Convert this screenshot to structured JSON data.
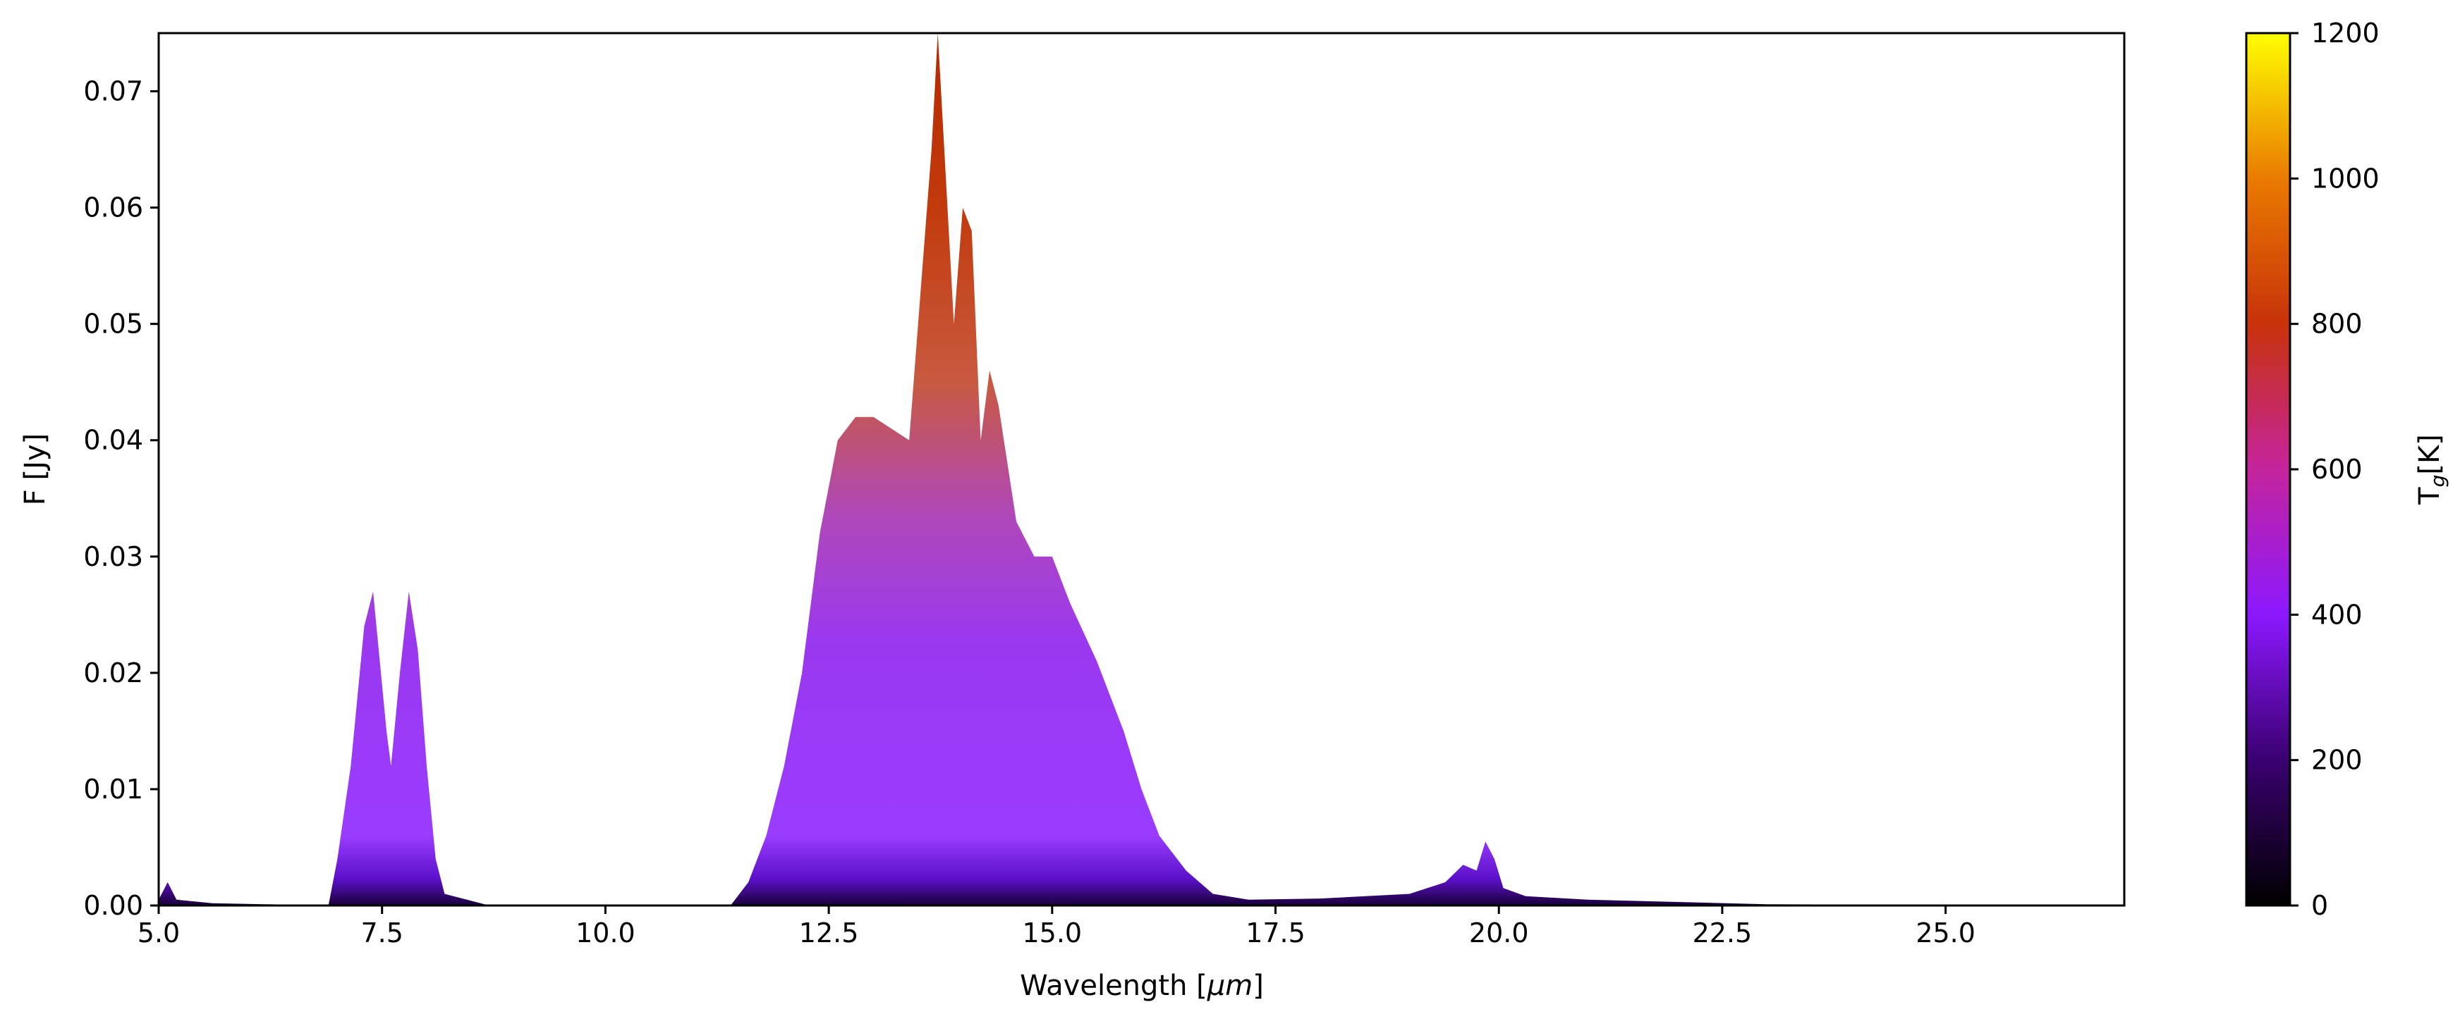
{
  "chart_data": {
    "type": "area",
    "xlabel_main": "Wavelength [",
    "xlabel_unit": "μm",
    "xlabel_end": "]",
    "ylabel": "F [Jy]",
    "xlim": [
      5.0,
      27.0
    ],
    "ylim": [
      0.0,
      0.075
    ],
    "xticks": [
      "5.0",
      "7.5",
      "10.0",
      "12.5",
      "15.0",
      "17.5",
      "20.0",
      "22.5",
      "25.0"
    ],
    "yticks": [
      "0.00",
      "0.01",
      "0.02",
      "0.03",
      "0.04",
      "0.05",
      "0.06",
      "0.07"
    ],
    "grid": false,
    "colorbar": {
      "label_main": "T",
      "label_sub": "g",
      "label_end": "[K]",
      "range": [
        0,
        1200
      ],
      "ticks": [
        "0",
        "200",
        "400",
        "600",
        "800",
        "1000",
        "1200"
      ],
      "colormap": "gnuplot",
      "colors": [
        "#000000",
        "#3a0070",
        "#8c18ff",
        "#c4249c",
        "#c8320a",
        "#ea7a00",
        "#ffff00"
      ]
    },
    "envelope": {
      "x": [
        5.0,
        5.1,
        5.2,
        5.6,
        6.9,
        7.0,
        7.15,
        7.3,
        7.4,
        7.55,
        7.6,
        7.7,
        7.8,
        7.9,
        8.0,
        8.1,
        8.2,
        8.7,
        11.4,
        11.6,
        11.8,
        12.0,
        12.2,
        12.4,
        12.6,
        12.8,
        13.0,
        13.2,
        13.4,
        13.55,
        13.65,
        13.72,
        13.8,
        13.9,
        14.0,
        14.1,
        14.2,
        14.3,
        14.4,
        14.6,
        14.8,
        15.0,
        15.2,
        15.5,
        15.8,
        16.0,
        16.2,
        16.5,
        16.8,
        17.2,
        18.0,
        19.0,
        19.4,
        19.6,
        19.75,
        19.85,
        19.95,
        20.05,
        20.3,
        21.0,
        22.0,
        23.0,
        27.0
      ],
      "y": [
        0.0005,
        0.002,
        0.0005,
        0.0002,
        0.0,
        0.004,
        0.012,
        0.024,
        0.027,
        0.015,
        0.012,
        0.02,
        0.027,
        0.022,
        0.012,
        0.004,
        0.001,
        0.0,
        0.0,
        0.002,
        0.006,
        0.012,
        0.02,
        0.032,
        0.04,
        0.042,
        0.042,
        0.041,
        0.04,
        0.055,
        0.065,
        0.075,
        0.064,
        0.05,
        0.06,
        0.058,
        0.04,
        0.046,
        0.043,
        0.033,
        0.03,
        0.03,
        0.026,
        0.021,
        0.015,
        0.01,
        0.006,
        0.003,
        0.001,
        0.0005,
        0.0006,
        0.001,
        0.002,
        0.0035,
        0.003,
        0.0055,
        0.004,
        0.0015,
        0.0008,
        0.0005,
        0.0003,
        0.0001,
        0.0
      ]
    }
  }
}
